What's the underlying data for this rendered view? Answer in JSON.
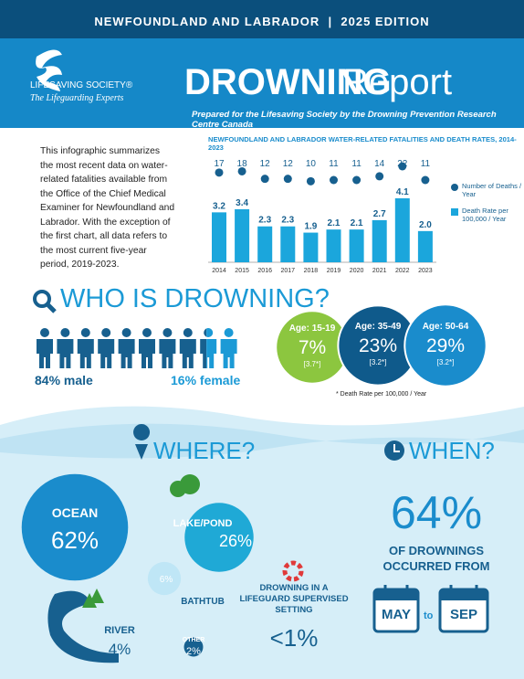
{
  "header": {
    "banner": "NEWFOUNDLAND AND LABRADOR  |  2025 EDITION",
    "org": "LIFESAVING SOCIETY®",
    "tagline": "The Lifeguarding Experts",
    "title_bold": "DROWNING",
    "title_light": "Report",
    "subtitle": "Prepared for the Lifesaving Society by the Drowning Prevention Research Centre Canada"
  },
  "intro": "This infographic summarizes the most recent data on water-related fatalities available from the Office of the Chief Medical Examiner for Newfoundland and Labrador. With the exception of the first chart, all data refers to the most current five-year period, 2019-2023.",
  "chart_data": {
    "type": "bar",
    "title": "NEWFOUNDLAND AND LABRADOR WATER-RELATED FATALITIES AND DEATH RATES, 2014-2023",
    "categories": [
      "2014",
      "2015",
      "2016",
      "2017",
      "2018",
      "2019",
      "2020",
      "2021",
      "2022",
      "2023"
    ],
    "series": [
      {
        "name": "Number of Deaths / Year",
        "type": "line",
        "color": "#17608f",
        "values": [
          17,
          18,
          12,
          12,
          10,
          11,
          11,
          14,
          22,
          11
        ]
      },
      {
        "name": "Death Rate per 100,000 / Year",
        "type": "bar",
        "color": "#1ba6dc",
        "values": [
          3.2,
          3.4,
          2.3,
          2.3,
          1.9,
          2.1,
          2.1,
          2.7,
          4.1,
          2.0
        ],
        "value_labels": [
          "3.2",
          "3.4",
          "2.3",
          "2.3",
          "1.9",
          "2.1",
          "2.1",
          "2.7",
          "4.1",
          "2.0"
        ]
      }
    ]
  },
  "who": {
    "title": "WHO IS DROWNING?",
    "gender": [
      {
        "value": 84,
        "label": "84% male"
      },
      {
        "value": 16,
        "label": "16% female"
      }
    ],
    "ages": [
      {
        "label": "Age: 15-19",
        "value": 7,
        "value_label": "7%",
        "rate": "[3.7*]",
        "color": "#8cc63f"
      },
      {
        "label": "Age: 35-49",
        "value": 23,
        "value_label": "23%",
        "rate": "[3.2*]",
        "color": "#0f5a8b"
      },
      {
        "label": "Age: 50-64",
        "value": 29,
        "value_label": "29%",
        "rate": "[3.2*]",
        "color": "#1a8ccc"
      }
    ],
    "note": "* Death Rate per 100,000 / Year"
  },
  "where": {
    "title": "WHERE?",
    "places": [
      {
        "name": "OCEAN",
        "value": 62,
        "value_label": "62%"
      },
      {
        "name": "LAKE/POND",
        "value": 26,
        "value_label": "26%"
      },
      {
        "name": "BATHTUB",
        "value": 6,
        "value_label": "6%"
      },
      {
        "name": "RIVER",
        "value": 4,
        "value_label": "4%"
      },
      {
        "name": "OTHER",
        "value": 2,
        "value_label": "2%"
      }
    ],
    "supervised": {
      "label": "DROWNING IN A LIFEGUARD SUPERVISED SETTING",
      "value_label": "<1%"
    }
  },
  "when": {
    "title": "WHEN?",
    "value": 64,
    "value_label": "64%",
    "text": "OF DROWNINGS OCCURRED FROM",
    "from": "MAY",
    "joiner": "to",
    "to": "SEP"
  }
}
